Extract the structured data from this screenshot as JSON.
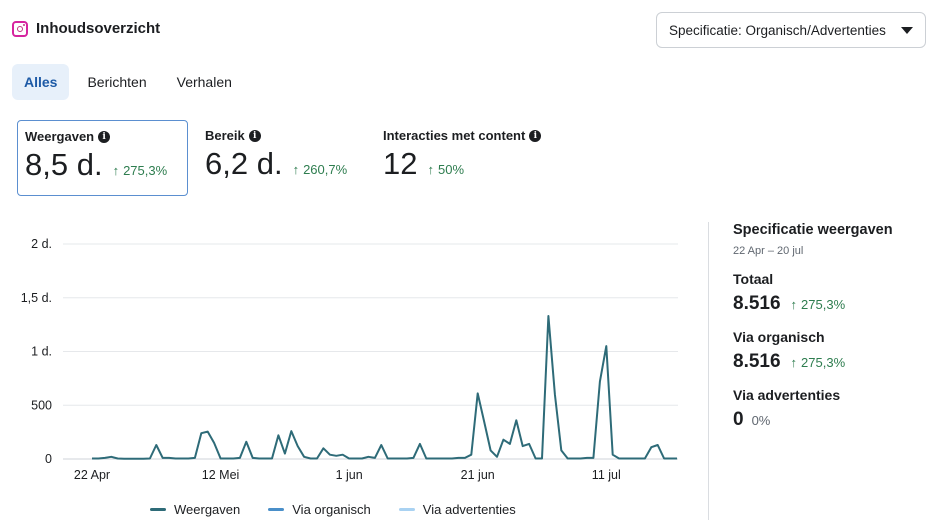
{
  "header": {
    "title": "Inhoudsoverzicht",
    "icon": "instagram-icon"
  },
  "dropdown": {
    "label": "Specificatie: Organisch/Advertenties"
  },
  "tabs": [
    {
      "label": "Alles",
      "active": true
    },
    {
      "label": "Berichten",
      "active": false
    },
    {
      "label": "Verhalen",
      "active": false
    }
  ],
  "metrics": [
    {
      "label": "Weergaven",
      "value": "8,5 d.",
      "change": "275,3%"
    },
    {
      "label": "Bereik",
      "value": "6,2 d.",
      "change": "260,7%"
    },
    {
      "label": "Interacties met content",
      "value": "12",
      "change": "50%"
    }
  ],
  "breakdown": {
    "title": "Specificatie weergaven",
    "date_range": "22 Apr – 20 jul",
    "items": [
      {
        "label": "Totaal",
        "value": "8.516",
        "change": "275,3%"
      },
      {
        "label": "Via organisch",
        "value": "8.516",
        "change": "275,3%"
      },
      {
        "label": "Via advertenties",
        "value": "0",
        "change": "0%"
      }
    ]
  },
  "colors": {
    "weergaven": "#2e6b78",
    "organisch": "#4a8fc9",
    "advertenties": "#a9d2f2",
    "positive": "#2e7d4f"
  },
  "chart_data": {
    "type": "line",
    "ylim": [
      0,
      2000
    ],
    "y_ticks": [
      {
        "value": 0,
        "label": "0"
      },
      {
        "value": 500,
        "label": "500"
      },
      {
        "value": 1000,
        "label": "1 d."
      },
      {
        "value": 1500,
        "label": "1,5 d."
      },
      {
        "value": 2000,
        "label": "2 d."
      }
    ],
    "x_ticks": [
      {
        "day": 0,
        "label": "22 Apr"
      },
      {
        "day": 20,
        "label": "12 Mei"
      },
      {
        "day": 40,
        "label": "1 jun"
      },
      {
        "day": 60,
        "label": "21 jun"
      },
      {
        "day": 80,
        "label": "11 jul"
      }
    ],
    "series": [
      {
        "name": "Weergaven",
        "values": [
          5,
          5,
          10,
          20,
          5,
          3,
          3,
          3,
          3,
          5,
          130,
          10,
          10,
          5,
          5,
          5,
          10,
          240,
          255,
          150,
          5,
          5,
          5,
          10,
          160,
          10,
          5,
          5,
          5,
          220,
          50,
          260,
          120,
          20,
          5,
          5,
          100,
          40,
          30,
          40,
          5,
          5,
          5,
          20,
          10,
          130,
          5,
          5,
          5,
          5,
          10,
          140,
          5,
          5,
          5,
          5,
          5,
          10,
          10,
          40,
          610,
          350,
          80,
          20,
          180,
          140,
          360,
          120,
          140,
          5,
          5,
          1330,
          600,
          80,
          5,
          5,
          5,
          10,
          10,
          720,
          1050,
          40,
          5,
          5,
          5,
          5,
          5,
          110,
          130,
          5,
          5,
          5
        ]
      },
      {
        "name": "Via organisch",
        "values": []
      },
      {
        "name": "Via advertenties",
        "values": []
      }
    ]
  }
}
